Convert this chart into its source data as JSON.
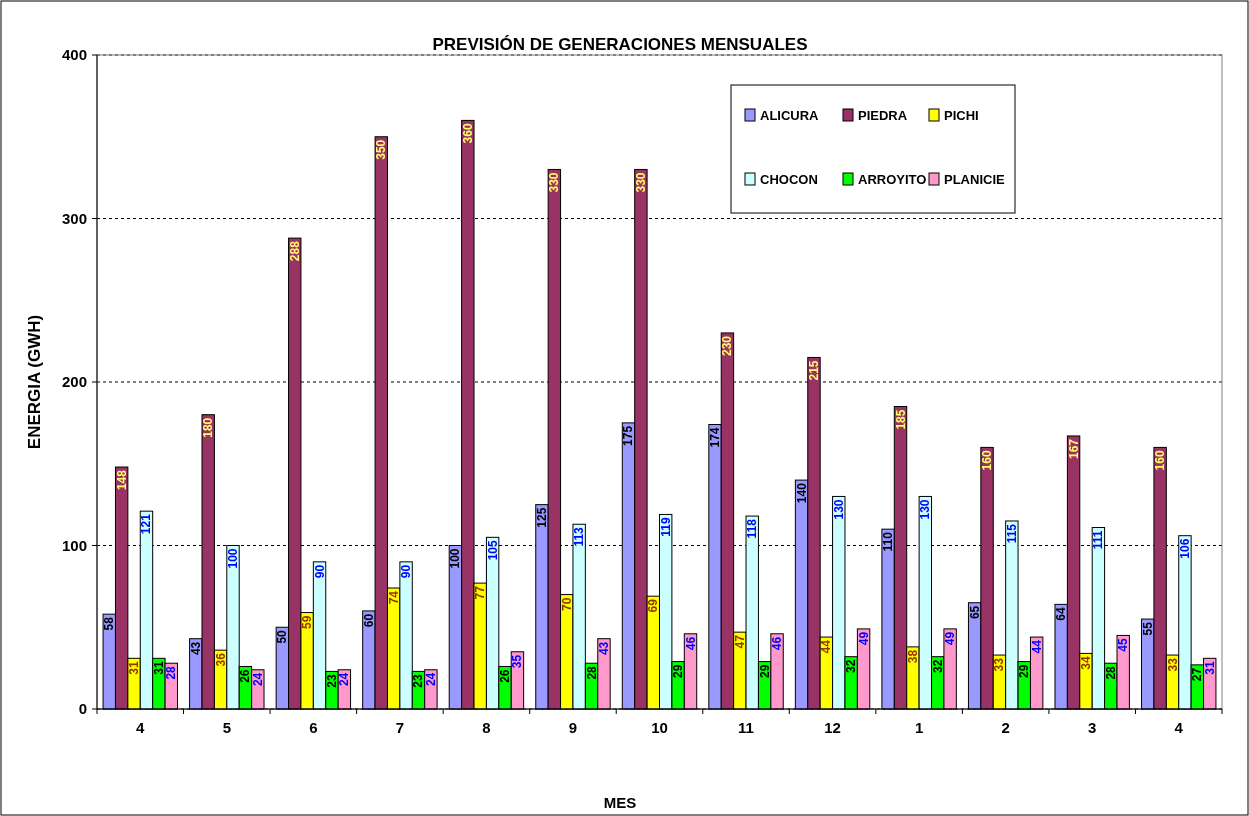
{
  "chart_data": {
    "type": "bar",
    "title": "PREVISIÓN DE GENERACIONES MENSUALES",
    "xlabel": "MES",
    "ylabel": "ENERGIA (GWH)",
    "categories": [
      "4",
      "5",
      "6",
      "7",
      "8",
      "9",
      "10",
      "11",
      "12",
      "1",
      "2",
      "3",
      "4"
    ],
    "series": [
      {
        "name": "ALICURA",
        "color": "#9999ff",
        "values": [
          58,
          43,
          50,
          60,
          100,
          125,
          175,
          174,
          140,
          110,
          65,
          64,
          55
        ]
      },
      {
        "name": "PIEDRA",
        "color": "#993366",
        "values": [
          148,
          180,
          288,
          350,
          360,
          330,
          330,
          230,
          215,
          185,
          160,
          167,
          160
        ]
      },
      {
        "name": "PICHI",
        "color": "#ffff00",
        "values": [
          31,
          36,
          59,
          74,
          77,
          70,
          69,
          47,
          44,
          38,
          33,
          34,
          33
        ]
      },
      {
        "name": "CHOCON",
        "color": "#ccffff",
        "values": [
          121,
          100,
          90,
          90,
          105,
          113,
          119,
          118,
          130,
          130,
          115,
          111,
          106
        ]
      },
      {
        "name": "ARROYITO",
        "color": "#00ff00",
        "values": [
          31,
          26,
          23,
          23,
          26,
          28,
          29,
          29,
          32,
          32,
          29,
          28,
          27
        ]
      },
      {
        "name": "PLANICIE",
        "color": "#ff99cc",
        "values": [
          28,
          24,
          24,
          24,
          35,
          43,
          46,
          46,
          49,
          49,
          44,
          45,
          31
        ]
      }
    ],
    "ylim": [
      0,
      400
    ],
    "yticks": [
      0,
      100,
      200,
      300,
      400
    ],
    "grid": "y",
    "legend": "top right",
    "data_labels": true
  }
}
